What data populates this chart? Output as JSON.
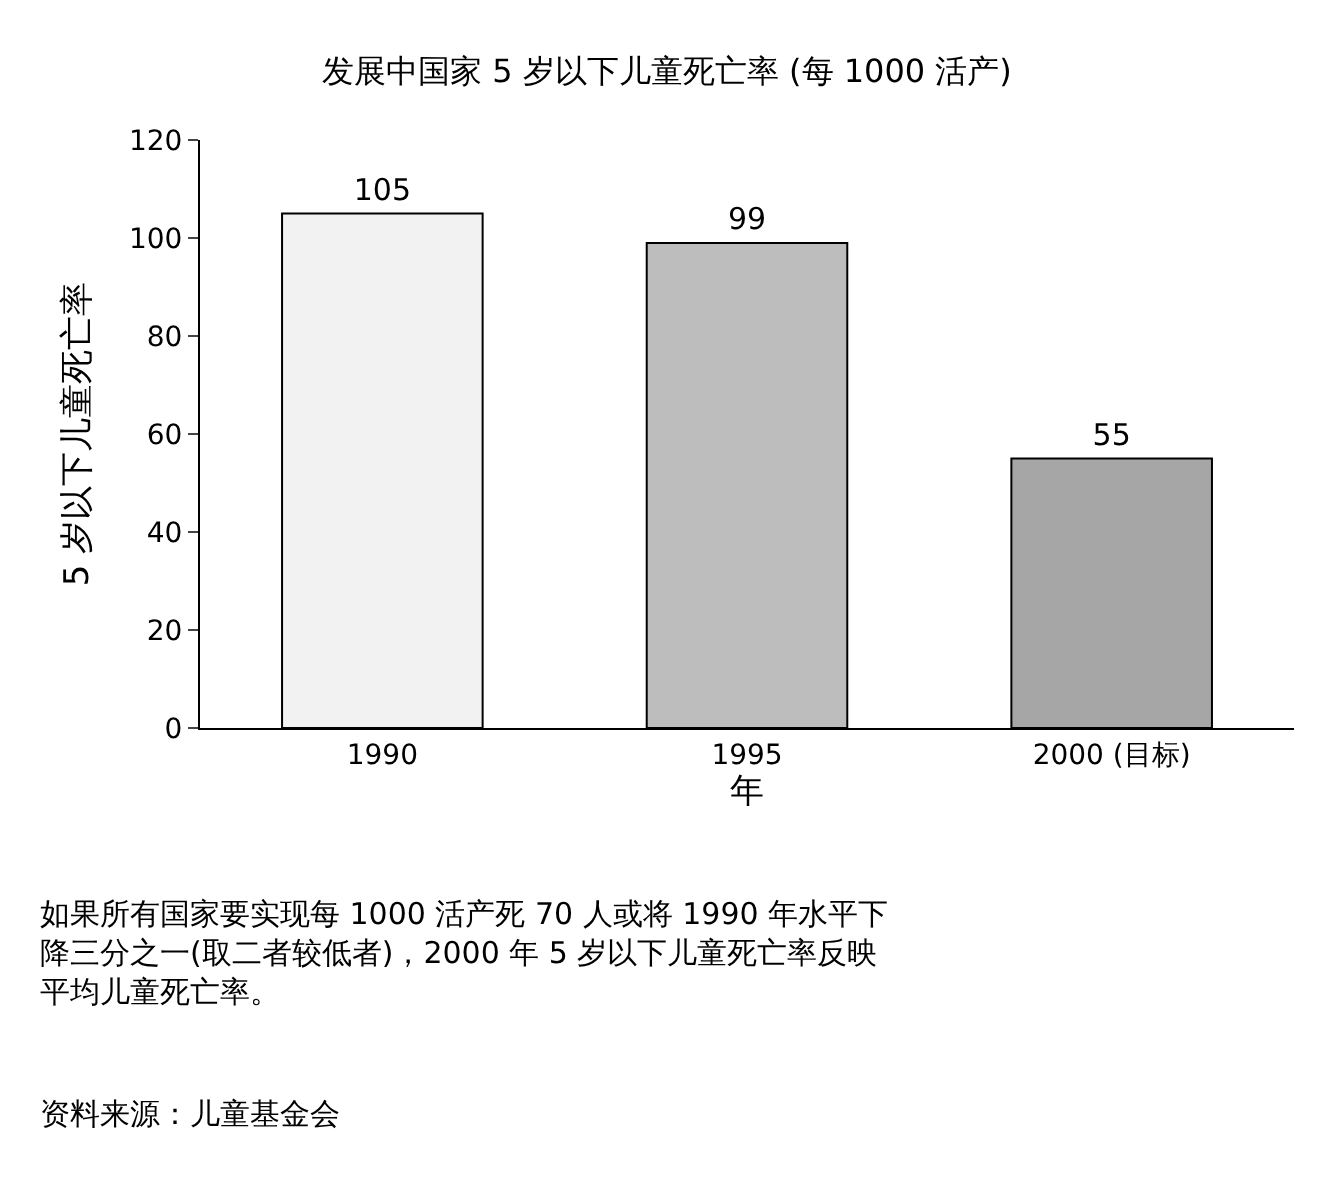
{
  "chart_data": {
    "type": "bar",
    "title": "发展中国家 5 岁以下儿童死亡率 (每 1000 活产)",
    "categories": [
      "1990",
      "1995",
      "2000 (目标)"
    ],
    "values": [
      105,
      99,
      55
    ],
    "colors": [
      "#f2f2f2",
      "#bdbdbd",
      "#a6a6a6"
    ],
    "xlabel": "年",
    "ylabel": "5 岁以下儿童死亡率",
    "ylim": [
      0,
      120
    ],
    "yticks": [
      0,
      20,
      40,
      60,
      80,
      100,
      120
    ],
    "data_labels": true,
    "annotations": [
      "如果所有国家要实现每 1000 活产死 70 人或将 1990 年水平下降三分之一(取二者较低者)，2000 年 5 岁以下儿童死亡率反映平均儿童死亡率。",
      "资料来源：儿童基金会"
    ]
  }
}
